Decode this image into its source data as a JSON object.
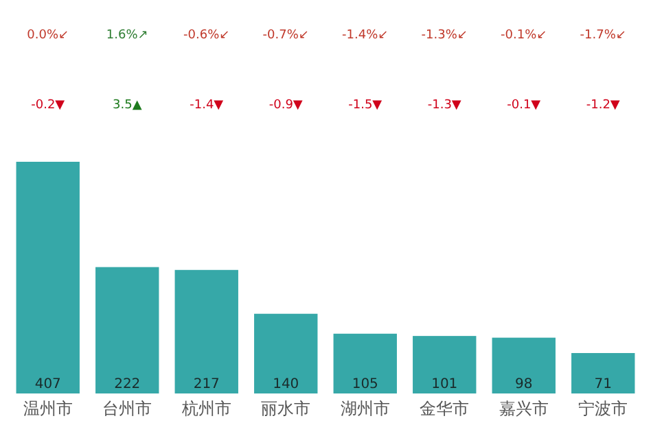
{
  "chart_data": {
    "type": "bar",
    "categories": [
      "温州市",
      "台州市",
      "杭州市",
      "丽水市",
      "湖州市",
      "金华市",
      "嘉兴市",
      "宁波市"
    ],
    "values": [
      407,
      222,
      217,
      140,
      105,
      101,
      98,
      71
    ],
    "color": "#36a8a8",
    "data_labels": true,
    "annotations": [
      "0.0%↙",
      "1.6%↗",
      "-0.6%↙",
      "-0.7%↙",
      "-1.4%↙",
      "-1.3%↙",
      "-0.1%↙",
      "-1.7%↙",
      "-0.2▼",
      "3.5▲",
      "-1.4▼",
      "-0.9▼",
      "-1.5▼",
      "-1.3▼",
      "-0.1▼",
      "-1.2▼"
    ]
  }
}
